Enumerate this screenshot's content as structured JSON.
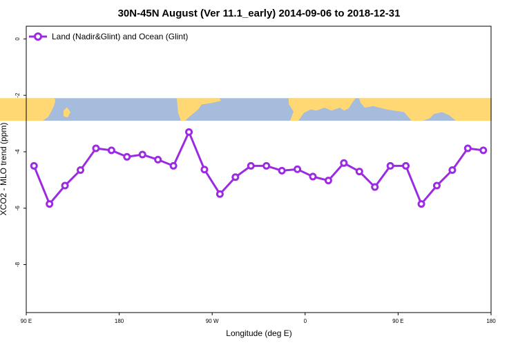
{
  "chart_data": {
    "type": "line",
    "title": "30N-45N August (Ver 11.1_early)   2014-09-06 to 2018-12-31",
    "xlabel": "Longitude (deg E)",
    "ylabel": "XCO2 - MLO trend (ppm)",
    "x_ticks": [
      {
        "value": 90,
        "label": "90 E"
      },
      {
        "value": 180,
        "label": "180"
      },
      {
        "value": 270,
        "label": "90 W"
      },
      {
        "value": 360,
        "label": "0"
      },
      {
        "value": 450,
        "label": "90 E"
      },
      {
        "value": 540,
        "label": "180"
      }
    ],
    "y_ticks": [
      {
        "value": 0,
        "label": "0"
      },
      {
        "value": -2,
        "label": "-2"
      },
      {
        "value": -4,
        "label": "-4"
      },
      {
        "value": -6,
        "label": "-6"
      },
      {
        "value": -8,
        "label": "-8"
      }
    ],
    "xlim": [
      90,
      540
    ],
    "ylim": [
      -9.7,
      0.45
    ],
    "land_band": {
      "y_top": -2.1,
      "y_bottom": -2.9,
      "ocean_color": "#a6bcdc",
      "land_color": "#ffd873"
    },
    "legend": {
      "placement": "top-left",
      "entries": [
        "Land (Nadir&Glint) and Ocean (Glint)"
      ]
    },
    "series": [
      {
        "name": "Land (Nadir&Glint) and Ocean (Glint)",
        "color": "#9b2be2",
        "x": [
          97.5,
          112.5,
          127.5,
          142.5,
          157.5,
          172.5,
          187.5,
          202.5,
          217.5,
          232.5,
          247.5,
          262.5,
          277.5,
          292.5,
          307.5,
          322.5,
          337.5,
          352.5,
          367.5,
          382.5,
          397.5,
          412.5,
          427.5,
          442.5,
          457.5,
          472.5,
          487.5,
          502.5,
          517.5,
          532.5
        ],
        "values": [
          -4.5,
          -5.85,
          -5.2,
          -4.65,
          -3.88,
          -3.95,
          -4.18,
          -4.1,
          -4.28,
          -4.5,
          -3.3,
          -4.63,
          -5.5,
          -4.9,
          -4.5,
          -4.5,
          -4.67,
          -4.62,
          -4.88,
          -5.02,
          -4.4,
          -4.7,
          -5.25,
          -4.5,
          -4.5,
          -5.85,
          -5.2,
          -4.65,
          -3.88,
          -3.95
        ]
      }
    ]
  }
}
